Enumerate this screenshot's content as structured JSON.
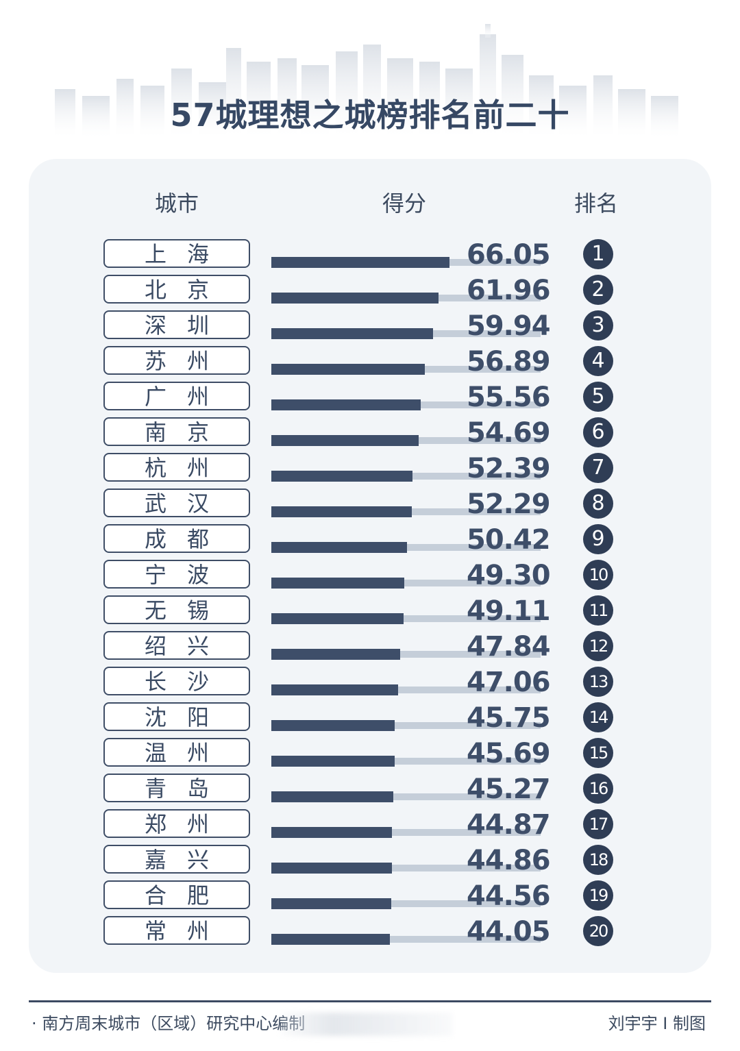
{
  "title": "57城理想之城榜排名前二十",
  "headers": {
    "city": "城市",
    "score": "得分",
    "rank": "排名"
  },
  "colors": {
    "bar": "#3e4e69",
    "track": "#c5ced9",
    "panel": "#f2f5f8",
    "rank_badge": "#2f3d55"
  },
  "chart_data": {
    "type": "bar",
    "orientation": "horizontal",
    "title": "57城理想之城榜排名前二十",
    "categories": [
      "上海",
      "北京",
      "深圳",
      "苏州",
      "广州",
      "南京",
      "杭州",
      "武汉",
      "成都",
      "宁波",
      "无锡",
      "绍兴",
      "长沙",
      "沈阳",
      "温州",
      "青岛",
      "郑州",
      "嘉兴",
      "合肥",
      "常州"
    ],
    "values": [
      66.05,
      61.96,
      59.94,
      56.89,
      55.56,
      54.69,
      52.39,
      52.29,
      50.42,
      49.3,
      49.11,
      47.84,
      47.06,
      45.75,
      45.69,
      45.27,
      44.87,
      44.86,
      44.56,
      44.05
    ],
    "value_labels": [
      "66.05",
      "61.96",
      "59.94",
      "56.89",
      "55.56",
      "54.69",
      "52.39",
      "52.29",
      "50.42",
      "49.30",
      "49.11",
      "47.84",
      "47.06",
      "45.75",
      "45.69",
      "45.27",
      "44.87",
      "44.86",
      "44.56",
      "44.05"
    ],
    "ranks": [
      "1",
      "2",
      "3",
      "4",
      "5",
      "6",
      "7",
      "8",
      "9",
      "10",
      "11",
      "12",
      "13",
      "14",
      "15",
      "16",
      "17",
      "18",
      "19",
      "20"
    ],
    "xlim": [
      0,
      100
    ],
    "grid": false,
    "legend": "none"
  },
  "footer": {
    "source": "· 南方周末城市（区域）研究中心编制",
    "maker": "刘宇宇  I 制图"
  }
}
